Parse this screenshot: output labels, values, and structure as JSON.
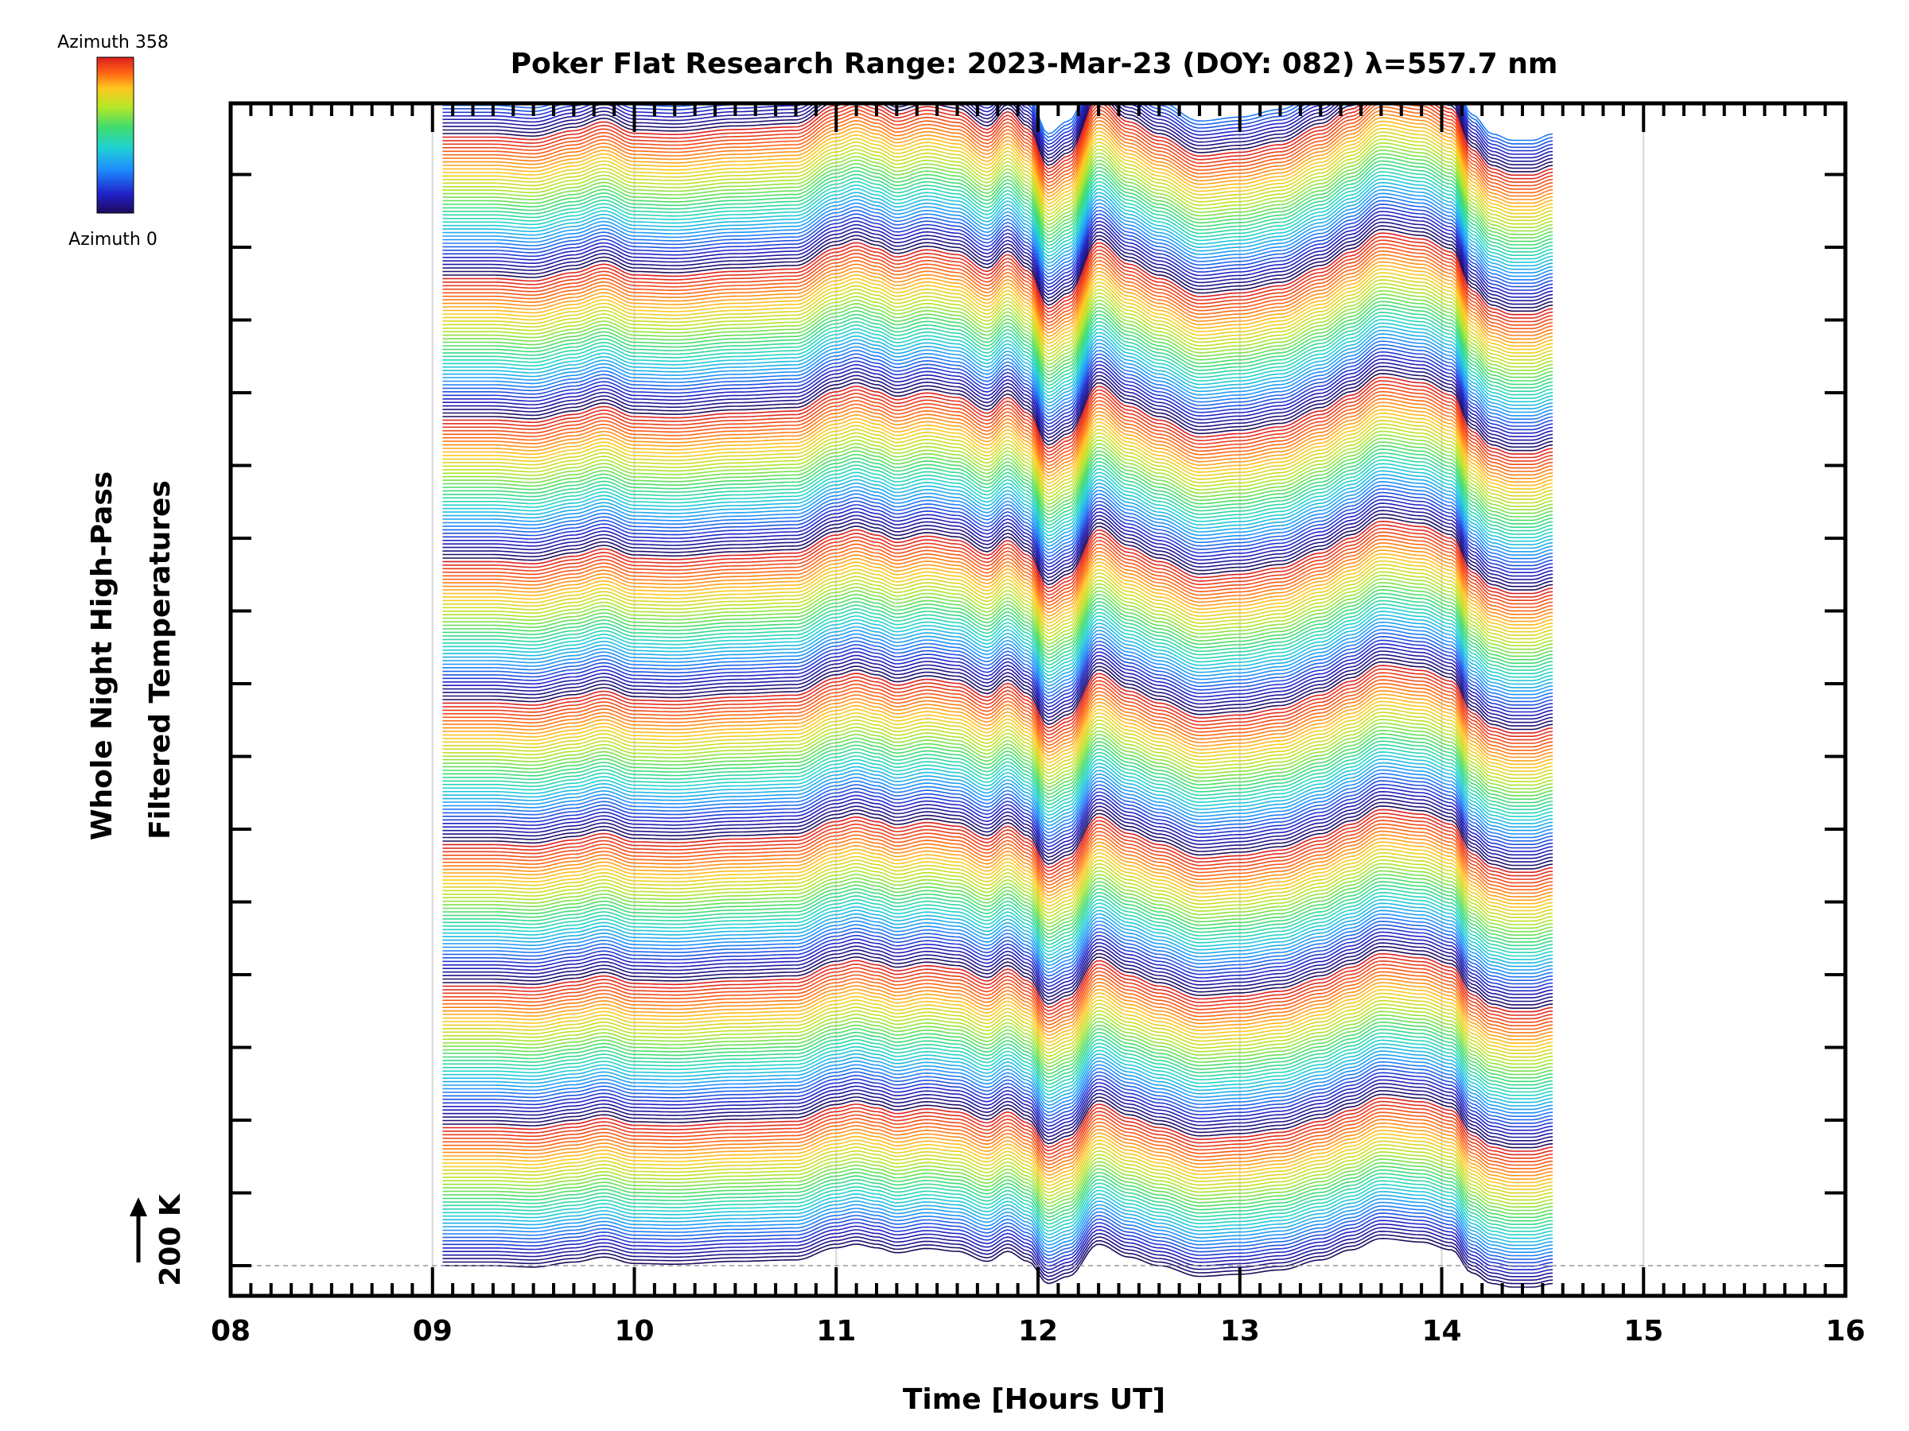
{
  "chart_data": {
    "type": "line",
    "title": "Poker Flat Research Range: 2023-Mar-23 (DOY: 082) λ=557.7 nm",
    "xlabel": "Time [Hours UT]",
    "ylabel_line1": "Whole Night High-Pass",
    "ylabel_line2": "Filtered Temperatures",
    "scale_label": "200 K",
    "xlim": [
      8,
      16
    ],
    "x_ticks": [
      "08",
      "09",
      "10",
      "11",
      "12",
      "13",
      "14",
      "15",
      "16"
    ],
    "data_xrange": [
      9.05,
      14.55
    ],
    "grid": "vertical lines at each hour",
    "colorbar": {
      "top_label": "Azimuth 358",
      "bottom_label": "Azimuth 0",
      "colormap": "rainbow",
      "colors": [
        "#1e0a5a",
        "#2020c8",
        "#1e8cff",
        "#20d2d2",
        "#40dc6e",
        "#b4e628",
        "#ffc81e",
        "#ff6414",
        "#dc1e1e"
      ]
    },
    "series_description": "Stacked offset traces of high-pass filtered temperature versus time, colored by azimuth (0 to 358), repeating in bands",
    "feature_profile": {
      "x": [
        9.05,
        9.3,
        9.5,
        9.7,
        9.85,
        10.0,
        10.2,
        10.5,
        10.8,
        11.0,
        11.1,
        11.2,
        11.3,
        11.45,
        11.6,
        11.75,
        11.85,
        11.95,
        12.05,
        12.15,
        12.3,
        12.45,
        12.6,
        12.8,
        13.0,
        13.2,
        13.4,
        13.55,
        13.7,
        13.9,
        14.05,
        14.15,
        14.25,
        14.35,
        14.45,
        14.55
      ],
      "y": [
        0,
        0,
        -0.2,
        0.5,
        1.2,
        0.3,
        0.2,
        0.6,
        0.8,
        2.5,
        3.0,
        2.5,
        1.8,
        2.4,
        2.0,
        0.6,
        2.0,
        0.6,
        -2.5,
        -1.5,
        3.0,
        1.2,
        0.0,
        -1.5,
        -1.2,
        -0.6,
        0.8,
        2.2,
        3.8,
        3.3,
        2.2,
        -1.0,
        -2.5,
        -3.0,
        -3.0,
        -2.5
      ]
    }
  }
}
